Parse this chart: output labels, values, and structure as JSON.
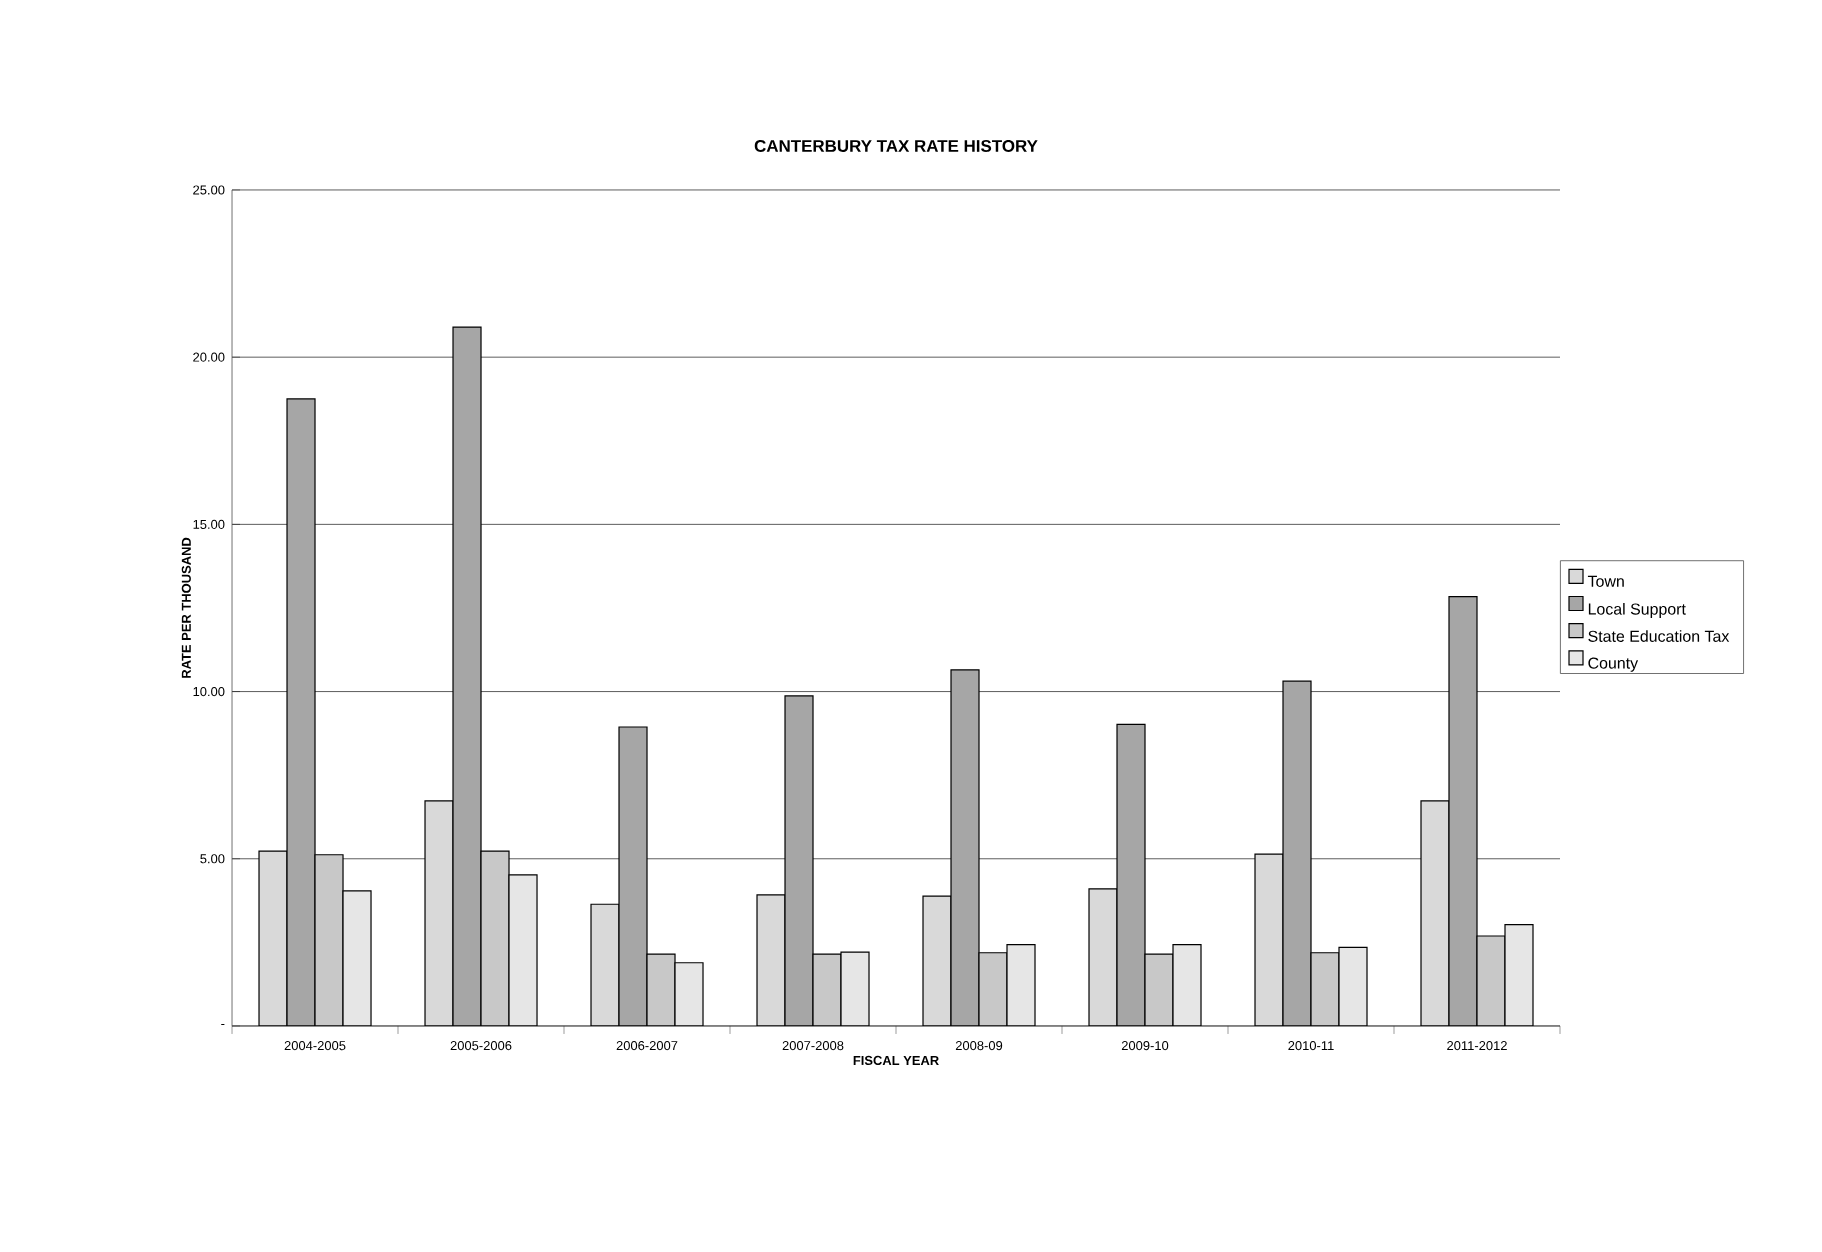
{
  "chart_data": {
    "type": "bar",
    "title": "CANTERBURY TAX RATE HISTORY",
    "xlabel": "FISCAL YEAR",
    "ylabel": "RATE PER THOUSAND",
    "categories": [
      "2004-2005",
      "2005-2006",
      "2006-2007",
      "2007-2008",
      "2008-09",
      "2009-10",
      "2010-11",
      "2011-2012"
    ],
    "series": [
      {
        "name": "Town",
        "color": "#d9d9d9",
        "values": [
          5.23,
          6.73,
          3.64,
          3.92,
          3.88,
          4.1,
          5.14,
          6.73
        ]
      },
      {
        "name": "Local Support",
        "color": "#a6a6a6",
        "values": [
          18.75,
          20.9,
          8.94,
          9.87,
          10.65,
          9.02,
          10.31,
          12.84
        ]
      },
      {
        "name": "State Education Tax",
        "color": "#c8c8c8",
        "values": [
          5.12,
          5.23,
          2.15,
          2.15,
          2.19,
          2.15,
          2.19,
          2.69
        ]
      },
      {
        "name": "County",
        "color": "#e6e6e6",
        "values": [
          4.04,
          4.52,
          1.89,
          2.21,
          2.43,
          2.43,
          2.35,
          3.03
        ]
      }
    ],
    "ylim": [
      0,
      25
    ],
    "yticks": [
      {
        "value": 0,
        "label": "-"
      },
      {
        "value": 5,
        "label": "5.00"
      },
      {
        "value": 10,
        "label": "10.00"
      },
      {
        "value": 15,
        "label": "15.00"
      },
      {
        "value": 20,
        "label": "20.00"
      },
      {
        "value": 25,
        "label": "25.00"
      }
    ],
    "grid": "y",
    "legend": "right"
  }
}
